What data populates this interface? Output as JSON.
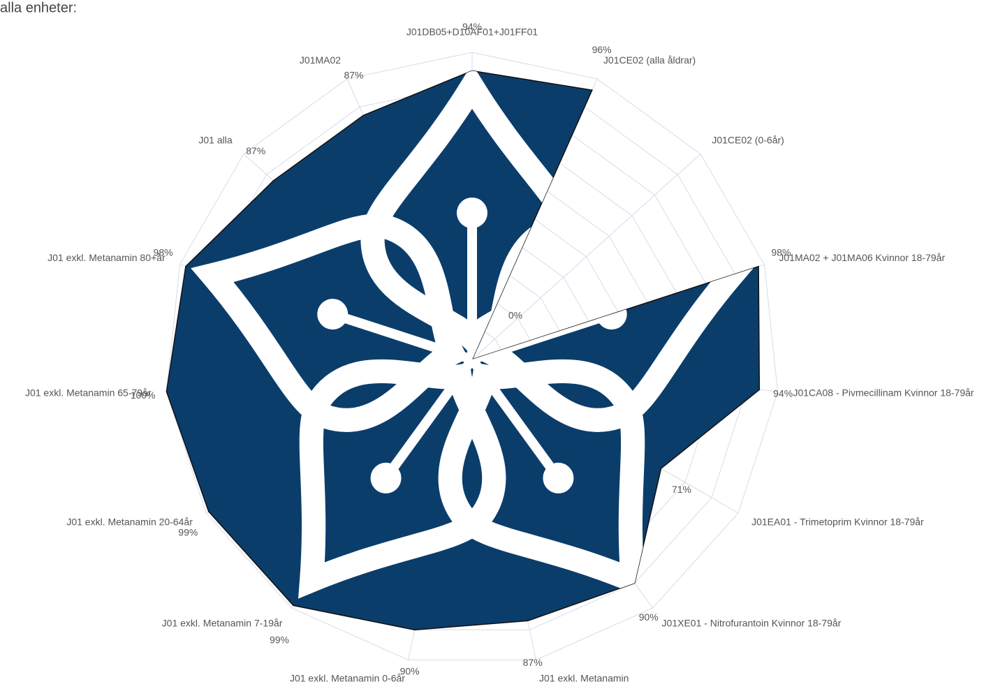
{
  "chart_data": {
    "type": "radar",
    "title": "alla enheter:",
    "categories": [
      "J01DB05+D10AF01+J01FF01",
      "J01CE02 (alla åldrar)",
      "J01CE02 (0-6år)",
      "J01MA02 + J01MA06 Kvinnor 18-79år",
      "J01CA08 - Pivmecillinam Kvinnor 18-79år",
      "J01EA01 - Trimetoprim Kvinnor 18-79år",
      "J01XE01 - Nitrofurantoin Kvinnor 18-79år",
      "J01 exkl. Metanamin",
      "J01 exkl. Metanamin 0-6år",
      "J01 exkl. Metanamin 7-19år",
      "J01 exkl. Metanamin 20-64år",
      "J01 exkl. Metanamin 65-79år",
      "J01 exkl. Metanamin 80+år",
      "J01 alla",
      "J01MA02"
    ],
    "values": [
      94,
      96,
      0,
      98,
      94,
      71,
      90,
      87,
      90,
      99,
      99,
      100,
      98,
      87,
      87
    ],
    "value_labels": [
      "94%",
      "96%",
      "0%",
      "98%",
      "94%",
      "71%",
      "90%",
      "87%",
      "90%",
      "99%",
      "99%",
      "100%",
      "98%",
      "87%",
      "87%"
    ],
    "color": "#0b3d6b",
    "ylim": [
      0,
      100
    ],
    "yticks": [
      0,
      10,
      20,
      30,
      40,
      50,
      60,
      70,
      80,
      90,
      100
    ],
    "grid": true
  }
}
